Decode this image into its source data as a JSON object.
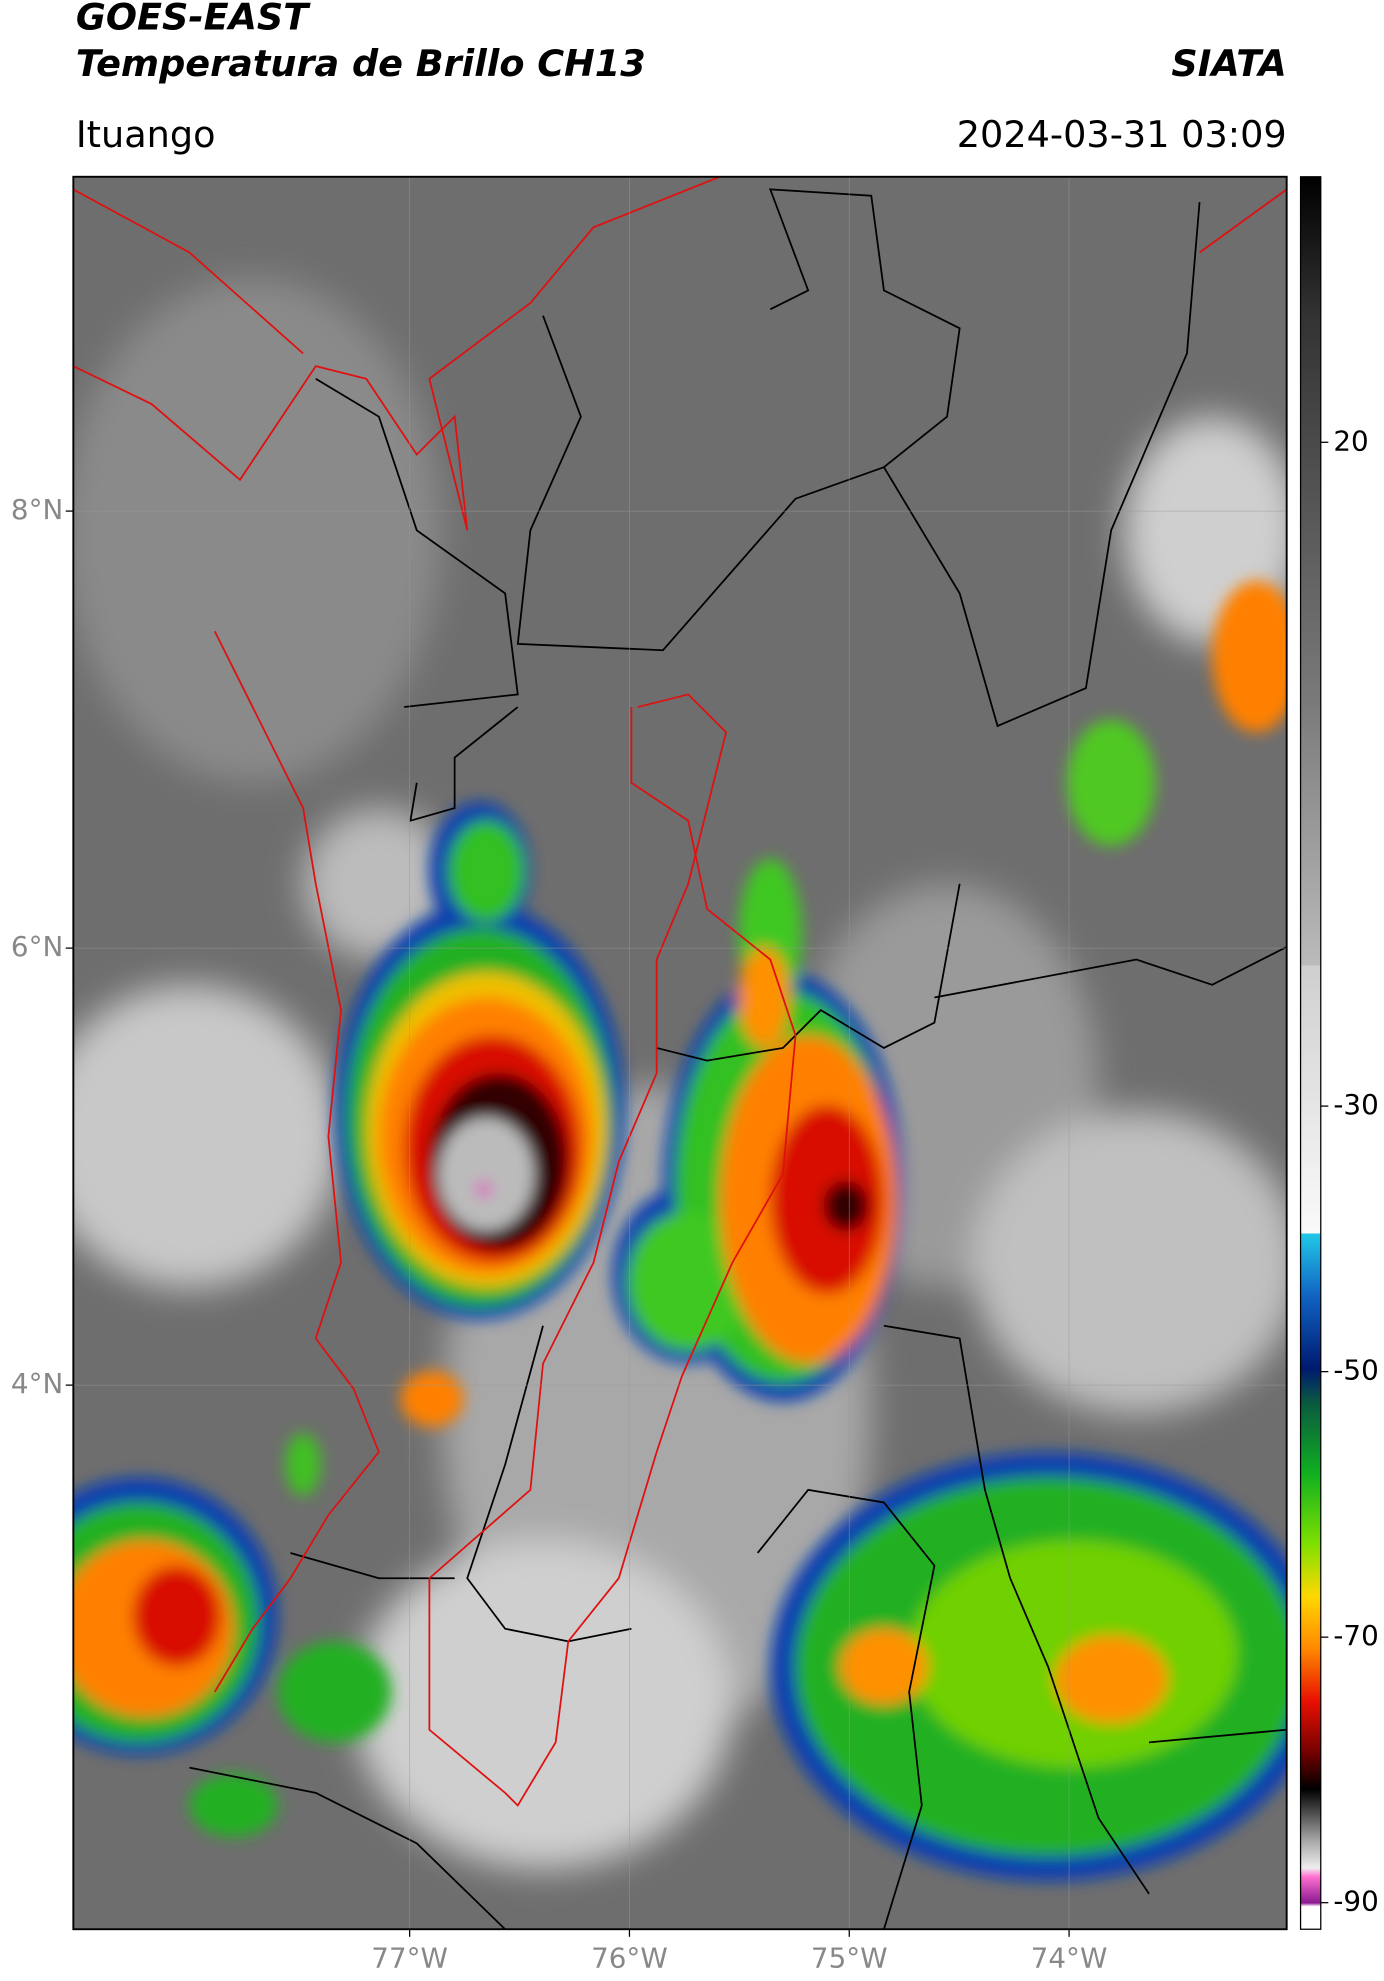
{
  "header": {
    "satellite": "GOES-EAST",
    "product": "Temperatura de Brillo CH13",
    "source": "SIATA",
    "place": "Ituango",
    "datetime": "2024-03-31 03:09"
  },
  "map": {
    "xlim": [
      -78.53,
      -73.01
    ],
    "ylim": [
      1.51,
      9.53
    ],
    "lat_ticks": [
      {
        "value": 8,
        "label": "8°N"
      },
      {
        "value": 6,
        "label": "6°N"
      },
      {
        "value": 4,
        "label": "4°N"
      }
    ],
    "lon_ticks": [
      {
        "value": -77,
        "label": "77°W"
      },
      {
        "value": -76,
        "label": "76°W"
      },
      {
        "value": -75,
        "label": "75°W"
      },
      {
        "value": -74,
        "label": "74°W"
      }
    ],
    "grid": true
  },
  "colorbar": {
    "range": [
      -92,
      40
    ],
    "ticks": [
      20,
      -30,
      -50,
      -70,
      -90
    ]
  }
}
